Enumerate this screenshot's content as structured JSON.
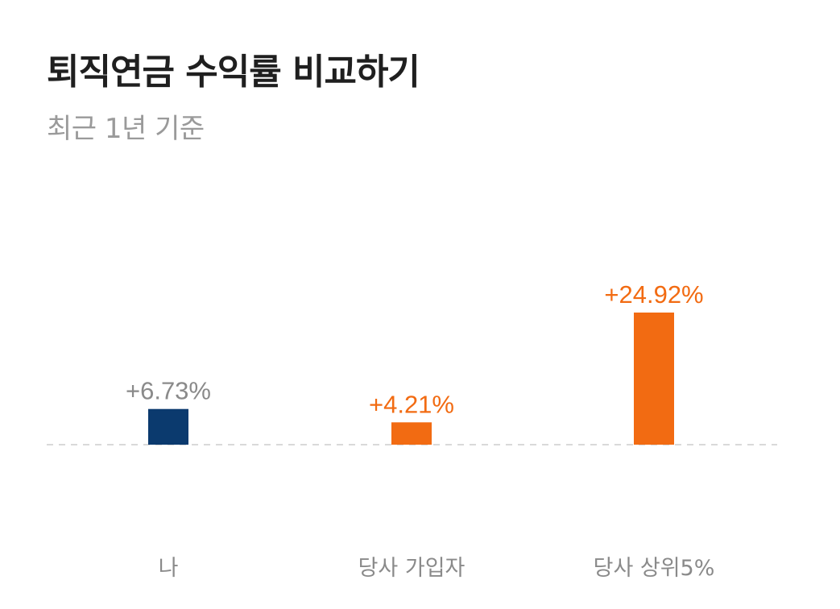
{
  "header": {
    "title": "퇴직연금 수익률 비교하기",
    "subtitle": "최근 1년 기준"
  },
  "colors": {
    "mine": "#0b3a6e",
    "others": "#f26b12",
    "mine_label": "#8a8a8a",
    "baseline": "#d9d9d9"
  },
  "chart_data": {
    "type": "bar",
    "title": "퇴직연금 수익률 비교하기",
    "subtitle": "최근 1년 기준",
    "categories": [
      "나",
      "당사 가입자",
      "당사 상위5%"
    ],
    "values": [
      6.73,
      4.21,
      24.92
    ],
    "value_labels": [
      "+6.73%",
      "+4.21%",
      "+24.92%"
    ],
    "bar_colors": [
      "#0b3a6e",
      "#f26b12",
      "#f26b12"
    ],
    "label_colors": [
      "#8a8a8a",
      "#f26b12",
      "#f26b12"
    ],
    "xlabel": "",
    "ylabel": "",
    "ylim": [
      0,
      25
    ],
    "grid": false,
    "baseline": "dashed"
  }
}
